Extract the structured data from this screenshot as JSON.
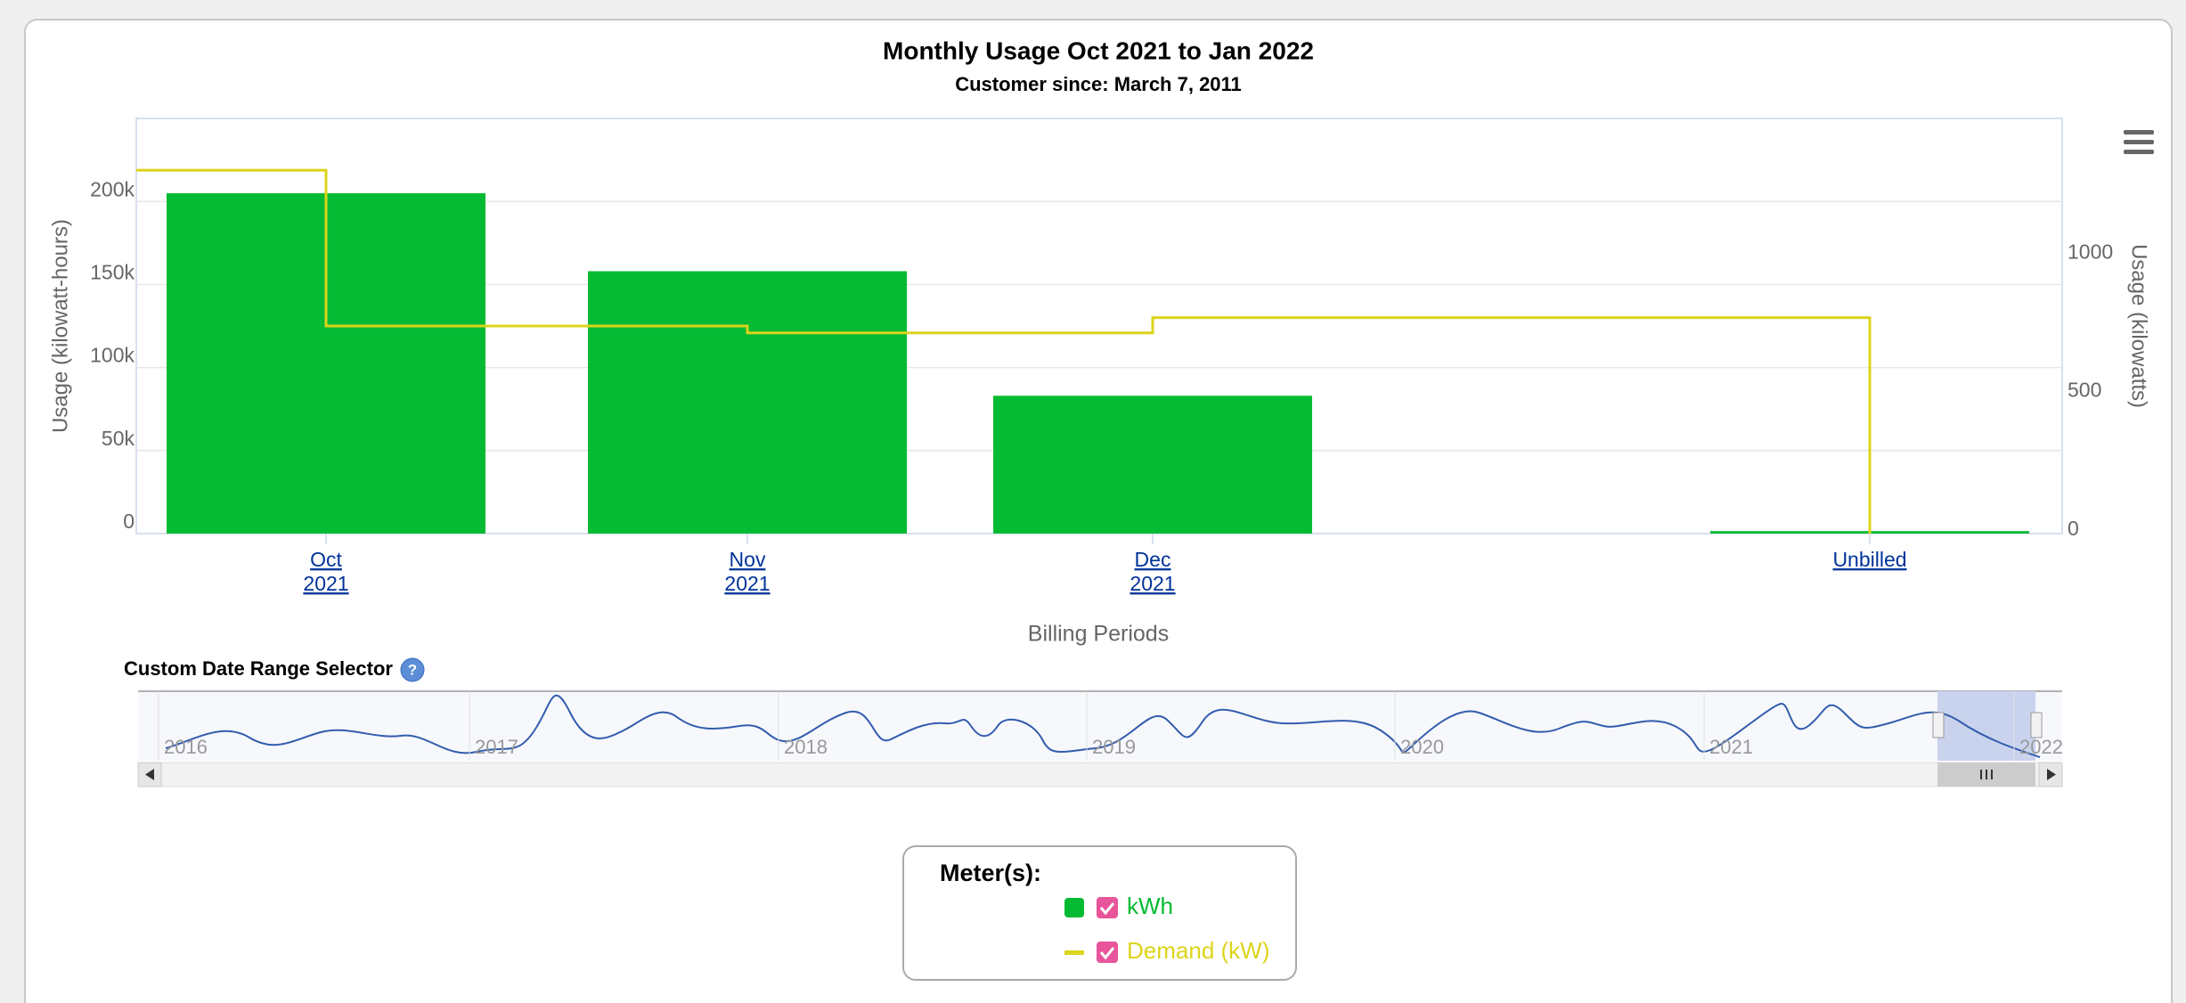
{
  "chart_data": {
    "type": "bar",
    "title": "Monthly Usage Oct 2021 to Jan 2022",
    "subtitle": "Customer since: March 7, 2011",
    "x_label": "Billing Periods",
    "y_label": "Usage (kilowatt-hours)",
    "y2_label": "Usage (kilowatts)",
    "categories": [
      [
        "Oct",
        "2021"
      ],
      [
        "Nov",
        "2021"
      ],
      [
        "Dec",
        "2021"
      ],
      [
        "Unbilled"
      ]
    ],
    "ylim": [
      0,
      250000
    ],
    "yticks": [
      0,
      {
        "value": 50000,
        "label": "50k"
      },
      {
        "value": 100000,
        "label": "100k"
      },
      {
        "value": 150000,
        "label": "150k"
      },
      {
        "value": 200000,
        "label": "200k"
      }
    ],
    "y2lim": [
      0,
      1500
    ],
    "y2ticks": [
      0,
      500,
      1000
    ],
    "grid": true,
    "series": [
      {
        "name": "kWh",
        "type": "bar",
        "color": "#04bb33",
        "values": [
          205000,
          158000,
          83000,
          1500
        ]
      },
      {
        "name": "Demand (kW)",
        "type": "step",
        "axis": "y2",
        "color": "#dcd41a",
        "values": [
          1313,
          750,
          725,
          780
        ]
      }
    ],
    "legend_title": "Meter(s):",
    "navigator": {
      "title": "Custom Date Range Selector",
      "labels": [
        "2016",
        "2017",
        "2018",
        "2019",
        "2020",
        "2021",
        "2022"
      ]
    }
  }
}
